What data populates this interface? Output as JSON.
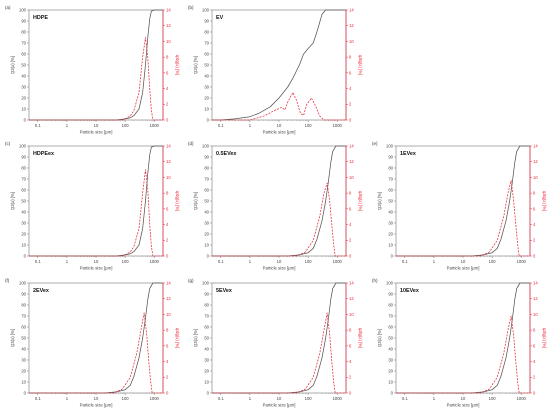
{
  "figure": {
    "colors": {
      "cumulative": "#555555",
      "density": "#e8283a",
      "axis": "#444444",
      "right_axis": "#e8283a"
    },
    "panels": [
      {
        "letter": "(a)",
        "sample": "HDPE"
      },
      {
        "letter": "(b)",
        "sample": "EV"
      },
      {
        "letter": "(c)",
        "sample": "HDPEex"
      },
      {
        "letter": "(d)",
        "sample": "0.5EVex"
      },
      {
        "letter": "(e)",
        "sample": "1EVex"
      },
      {
        "letter": "(f)",
        "sample": "2EVex"
      },
      {
        "letter": "(g)",
        "sample": "5EVex"
      },
      {
        "letter": "(h)",
        "sample": "10EVex"
      }
    ]
  },
  "chart_data": [
    {
      "type": "line",
      "panel": "(a)",
      "title": "HDPE",
      "xlabel": "Particle size [µm]",
      "ylabel": "Q3(x) [%]",
      "y2label": "q3lg(x) [%]",
      "xscale": "log",
      "xlim": [
        0.05,
        2000
      ],
      "xticks": [
        "0.1",
        "1",
        "10",
        "100",
        "1000"
      ],
      "ylim": [
        0,
        100
      ],
      "yticks": [
        "0",
        "10",
        "20",
        "30",
        "40",
        "50",
        "60",
        "70",
        "80",
        "90",
        "100"
      ],
      "y2lim": [
        0,
        14
      ],
      "y2ticks": [
        "0",
        "2",
        "4",
        "6",
        "8",
        "10",
        "12",
        "14"
      ],
      "series": [
        {
          "axis": "left",
          "style": "solid",
          "x": [
            0.05,
            50,
            100,
            150,
            200,
            300,
            400,
            500,
            600,
            700,
            800,
            1000,
            2000
          ],
          "y": [
            0,
            0,
            1,
            2,
            4,
            10,
            25,
            50,
            75,
            92,
            99,
            100,
            100
          ]
        },
        {
          "axis": "right",
          "style": "dashed",
          "x": [
            0.05,
            80,
            150,
            200,
            300,
            400,
            500,
            600,
            700,
            800,
            900,
            2000
          ],
          "y": [
            0,
            0,
            0.5,
            1.2,
            3.5,
            8,
            10.5,
            8,
            4,
            1.2,
            0,
            0
          ]
        }
      ]
    },
    {
      "type": "line",
      "panel": "(b)",
      "title": "EV",
      "xlabel": "Particle size [µm]",
      "ylabel": "Q3(x) [%]",
      "y2label": "q3lg(x) [%]",
      "xscale": "log",
      "xlim": [
        0.05,
        2000
      ],
      "xticks": [
        "0.1",
        "1",
        "10",
        "100",
        "1000"
      ],
      "ylim": [
        0,
        100
      ],
      "yticks": [
        "0",
        "10",
        "20",
        "30",
        "40",
        "50",
        "60",
        "70",
        "80",
        "90",
        "100"
      ],
      "y2lim": [
        0,
        14
      ],
      "y2ticks": [
        "0",
        "2",
        "4",
        "6",
        "8",
        "10",
        "12",
        "14"
      ],
      "series": [
        {
          "axis": "left",
          "style": "solid",
          "x": [
            0.05,
            0.1,
            0.3,
            1,
            2,
            5,
            10,
            20,
            30,
            50,
            70,
            100,
            150,
            200,
            300,
            400,
            2000
          ],
          "y": [
            0,
            0,
            1,
            3,
            6,
            12,
            20,
            30,
            38,
            50,
            60,
            65,
            70,
            80,
            96,
            100,
            100
          ]
        },
        {
          "axis": "right",
          "style": "dashed",
          "x": [
            0.05,
            1,
            3,
            7,
            12,
            16,
            20,
            30,
            40,
            55,
            70,
            90,
            130,
            180,
            250,
            350,
            2000
          ],
          "y": [
            0,
            0,
            0.5,
            1.2,
            1.6,
            1.3,
            2.3,
            3.5,
            2.5,
            0.8,
            0.6,
            2.0,
            2.8,
            1.8,
            0.5,
            0,
            0
          ]
        }
      ]
    },
    {
      "type": "line",
      "panel": "(c)",
      "title": "HDPEex",
      "xlabel": "Particle size [µm]",
      "ylabel": "Q3(x) [%]",
      "y2label": "q3lg(x) [%]",
      "xscale": "log",
      "xlim": [
        0.05,
        2000
      ],
      "xticks": [
        "0.1",
        "1",
        "10",
        "100",
        "1000"
      ],
      "ylim": [
        0,
        100
      ],
      "yticks": [
        "0",
        "10",
        "20",
        "30",
        "40",
        "50",
        "60",
        "70",
        "80",
        "90",
        "100"
      ],
      "y2lim": [
        0,
        14
      ],
      "y2ticks": [
        "0",
        "2",
        "4",
        "6",
        "8",
        "10",
        "12",
        "14"
      ],
      "series": [
        {
          "axis": "left",
          "style": "solid",
          "x": [
            0.05,
            50,
            100,
            150,
            200,
            300,
            400,
            500,
            600,
            700,
            800,
            1000,
            2000
          ],
          "y": [
            0,
            0,
            1,
            2,
            4,
            10,
            25,
            50,
            75,
            92,
            99,
            100,
            100
          ]
        },
        {
          "axis": "right",
          "style": "dashed",
          "x": [
            0.05,
            80,
            150,
            200,
            300,
            400,
            500,
            600,
            700,
            800,
            900,
            2000
          ],
          "y": [
            0,
            0,
            0.5,
            1.2,
            3.5,
            8,
            11,
            8.5,
            4,
            1.2,
            0,
            0
          ]
        }
      ]
    },
    {
      "type": "line",
      "panel": "(d)",
      "title": "0.5EVex",
      "xlabel": "Particle size [µm]",
      "ylabel": "Q3(x) [%]",
      "y2label": "q3lg(x) [%]",
      "xscale": "log",
      "xlim": [
        0.05,
        2000
      ],
      "xticks": [
        "0.1",
        "1",
        "10",
        "100",
        "1000"
      ],
      "ylim": [
        0,
        100
      ],
      "yticks": [
        "0",
        "10",
        "20",
        "30",
        "40",
        "50",
        "60",
        "70",
        "80",
        "90",
        "100"
      ],
      "y2lim": [
        0,
        14
      ],
      "y2ticks": [
        "0",
        "2",
        "4",
        "6",
        "8",
        "10",
        "12",
        "14"
      ],
      "series": [
        {
          "axis": "left",
          "style": "solid",
          "x": [
            0.05,
            20,
            50,
            100,
            150,
            200,
            300,
            400,
            500,
            600,
            700,
            900,
            2000
          ],
          "y": [
            0,
            0,
            1,
            3,
            7,
            15,
            32,
            50,
            68,
            85,
            95,
            100,
            100
          ]
        },
        {
          "axis": "right",
          "style": "dashed",
          "x": [
            0.05,
            40,
            80,
            150,
            250,
            350,
            450,
            550,
            650,
            750,
            850,
            2000
          ],
          "y": [
            0,
            0,
            0.5,
            2,
            5,
            8,
            9.3,
            7,
            4,
            1.5,
            0,
            0
          ]
        }
      ]
    },
    {
      "type": "line",
      "panel": "(e)",
      "title": "1EVex",
      "xlabel": "Particle size [µm]",
      "ylabel": "Q3(x) [%]",
      "y2label": "q3lg(x) [%]",
      "xscale": "log",
      "xlim": [
        0.05,
        2000
      ],
      "xticks": [
        "0.1",
        "1",
        "10",
        "100",
        "1000"
      ],
      "ylim": [
        0,
        100
      ],
      "yticks": [
        "0",
        "10",
        "20",
        "30",
        "40",
        "50",
        "60",
        "70",
        "80",
        "90",
        "100"
      ],
      "y2lim": [
        0,
        14
      ],
      "y2ticks": [
        "0",
        "2",
        "4",
        "6",
        "8",
        "10",
        "12",
        "14"
      ],
      "series": [
        {
          "axis": "left",
          "style": "solid",
          "x": [
            0.05,
            20,
            50,
            100,
            150,
            200,
            300,
            400,
            500,
            600,
            700,
            900,
            2000
          ],
          "y": [
            0,
            0,
            1,
            3,
            7,
            15,
            32,
            50,
            68,
            85,
            95,
            100,
            100
          ]
        },
        {
          "axis": "right",
          "style": "dashed",
          "x": [
            0.05,
            40,
            80,
            150,
            250,
            350,
            450,
            550,
            650,
            750,
            850,
            2000
          ],
          "y": [
            0,
            0,
            0.5,
            2,
            5,
            8,
            9.6,
            7,
            4,
            1.5,
            0,
            0
          ]
        }
      ]
    },
    {
      "type": "line",
      "panel": "(f)",
      "title": "2EVex",
      "xlabel": "Particle size [µm]",
      "ylabel": "Q3(x) [%]",
      "y2label": "q3lg(x) [%]",
      "xscale": "log",
      "xlim": [
        0.05,
        2000
      ],
      "xticks": [
        "0.1",
        "1",
        "10",
        "100",
        "1000"
      ],
      "ylim": [
        0,
        100
      ],
      "yticks": [
        "0",
        "10",
        "20",
        "30",
        "40",
        "50",
        "60",
        "70",
        "80",
        "90",
        "100"
      ],
      "y2lim": [
        0,
        14
      ],
      "y2ticks": [
        "0",
        "2",
        "4",
        "6",
        "8",
        "10",
        "12",
        "14"
      ],
      "series": [
        {
          "axis": "left",
          "style": "solid",
          "x": [
            0.05,
            20,
            50,
            100,
            150,
            200,
            300,
            400,
            500,
            600,
            700,
            900,
            2000
          ],
          "y": [
            0,
            0,
            1,
            3,
            7,
            15,
            32,
            50,
            68,
            85,
            95,
            100,
            100
          ]
        },
        {
          "axis": "right",
          "style": "dashed",
          "x": [
            0.05,
            40,
            80,
            150,
            250,
            350,
            450,
            550,
            650,
            750,
            850,
            2000
          ],
          "y": [
            0,
            0,
            0.5,
            2,
            5,
            8,
            10.2,
            7.5,
            4,
            1.5,
            0,
            0
          ]
        }
      ]
    },
    {
      "type": "line",
      "panel": "(g)",
      "title": "5EVex",
      "xlabel": "Particle size [µm]",
      "ylabel": "Q3(x) [%]",
      "y2label": "q3lg(x) [%]",
      "xscale": "log",
      "xlim": [
        0.05,
        2000
      ],
      "xticks": [
        "0.1",
        "1",
        "10",
        "100",
        "1000"
      ],
      "ylim": [
        0,
        100
      ],
      "yticks": [
        "0",
        "10",
        "20",
        "30",
        "40",
        "50",
        "60",
        "70",
        "80",
        "90",
        "100"
      ],
      "y2lim": [
        0,
        14
      ],
      "y2ticks": [
        "0",
        "2",
        "4",
        "6",
        "8",
        "10",
        "12",
        "14"
      ],
      "series": [
        {
          "axis": "left",
          "style": "solid",
          "x": [
            0.05,
            20,
            50,
            100,
            150,
            200,
            300,
            400,
            500,
            600,
            700,
            900,
            2000
          ],
          "y": [
            0,
            0,
            1,
            3,
            7,
            15,
            32,
            50,
            68,
            85,
            95,
            100,
            100
          ]
        },
        {
          "axis": "right",
          "style": "dashed",
          "x": [
            0.05,
            40,
            80,
            150,
            250,
            350,
            450,
            550,
            650,
            750,
            850,
            2000
          ],
          "y": [
            0,
            0,
            0.5,
            2,
            5,
            8,
            10.2,
            7.5,
            4,
            1.5,
            0,
            0
          ]
        }
      ]
    },
    {
      "type": "line",
      "panel": "(h)",
      "title": "10EVex",
      "xlabel": "Particle size [µm]",
      "ylabel": "Q3(x) [%]",
      "y2label": "q3lg(x) [%]",
      "xscale": "log",
      "xlim": [
        0.05,
        2000
      ],
      "xticks": [
        "0.1",
        "1",
        "10",
        "100",
        "1000"
      ],
      "ylim": [
        0,
        100
      ],
      "yticks": [
        "0",
        "10",
        "20",
        "30",
        "40",
        "50",
        "60",
        "70",
        "80",
        "90",
        "100"
      ],
      "y2lim": [
        0,
        14
      ],
      "y2ticks": [
        "0",
        "2",
        "4",
        "6",
        "8",
        "10",
        "12",
        "14"
      ],
      "series": [
        {
          "axis": "left",
          "style": "solid",
          "x": [
            0.05,
            20,
            50,
            100,
            150,
            200,
            300,
            400,
            500,
            600,
            700,
            900,
            2000
          ],
          "y": [
            0,
            0,
            1,
            3,
            7,
            15,
            32,
            50,
            68,
            85,
            95,
            100,
            100
          ]
        },
        {
          "axis": "right",
          "style": "dashed",
          "x": [
            0.05,
            40,
            80,
            150,
            250,
            350,
            450,
            550,
            650,
            750,
            850,
            2000
          ],
          "y": [
            0,
            0,
            0.5,
            2,
            5,
            8,
            9.8,
            7.3,
            4,
            1.5,
            0,
            0
          ]
        }
      ]
    }
  ]
}
